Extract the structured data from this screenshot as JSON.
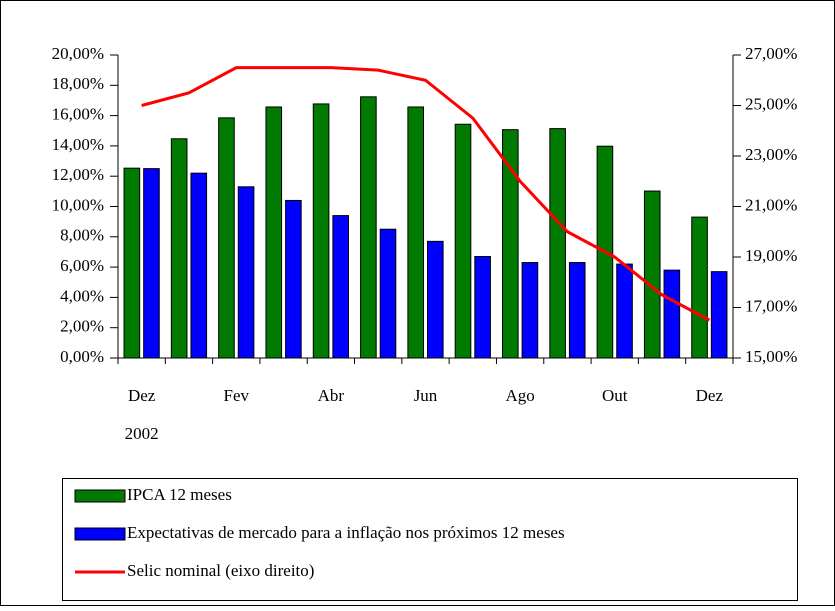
{
  "chart_data": {
    "type": "bar_line",
    "categories": [
      "Dez",
      null,
      "Fev",
      null,
      "Abr",
      null,
      "Jun",
      null,
      "Ago",
      null,
      "Out",
      null,
      "Dez"
    ],
    "x_sublabel": "2002",
    "series": [
      {
        "name": "IPCA 12 meses",
        "color": "#007a00",
        "values": [
          12.53,
          14.47,
          15.85,
          16.57,
          16.77,
          17.24,
          16.57,
          15.43,
          15.07,
          15.14,
          13.98,
          11.02,
          9.3
        ]
      },
      {
        "name": "Expectativas de mercado para a inflação nos próximos 12 meses",
        "color": "#0000ff",
        "values": [
          12.5,
          12.2,
          11.3,
          10.4,
          9.4,
          8.5,
          7.7,
          6.7,
          6.3,
          6.3,
          6.2,
          5.8,
          5.7
        ]
      },
      {
        "name": "Selic nominal (eixo direito)",
        "color": "#ff0000",
        "axis": "y2",
        "values": [
          25.0,
          25.5,
          26.5,
          26.5,
          26.5,
          26.4,
          26.0,
          24.5,
          22.0,
          20.0,
          19.0,
          17.5,
          16.5
        ]
      }
    ],
    "ylim": [
      0,
      20
    ],
    "yticks": [
      {
        "value": 0,
        "label": "0,00%"
      },
      {
        "value": 2,
        "label": "2,00%"
      },
      {
        "value": 4,
        "label": "4,00%"
      },
      {
        "value": 6,
        "label": "6,00%"
      },
      {
        "value": 8,
        "label": "8,00%"
      },
      {
        "value": 10,
        "label": "10,00%"
      },
      {
        "value": 12,
        "label": "12,00%"
      },
      {
        "value": 14,
        "label": "14,00%"
      },
      {
        "value": 16,
        "label": "16,00%"
      },
      {
        "value": 18,
        "label": "18,00%"
      },
      {
        "value": 20,
        "label": "20,00%"
      }
    ],
    "y2lim": [
      15,
      27
    ],
    "y2ticks": [
      {
        "value": 15,
        "label": "15,00%"
      },
      {
        "value": 17,
        "label": "17,00%"
      },
      {
        "value": 19,
        "label": "19,00%"
      },
      {
        "value": 21,
        "label": "21,00%"
      },
      {
        "value": 23,
        "label": "23,00%"
      },
      {
        "value": 25,
        "label": "25,00%"
      },
      {
        "value": 27,
        "label": "27,00%"
      }
    ]
  }
}
